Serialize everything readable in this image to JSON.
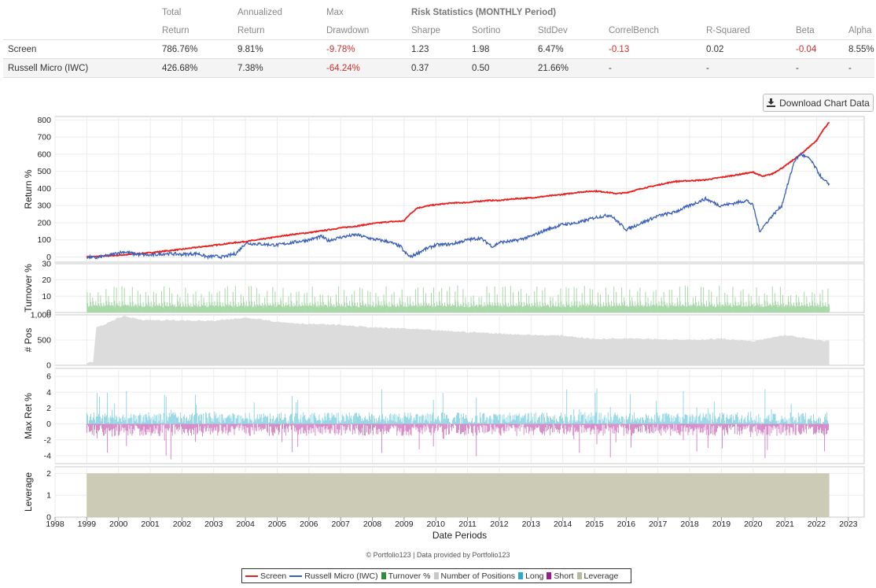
{
  "stats": {
    "headers_top": [
      "Total",
      "Annualized",
      "Max",
      "Risk Statistics (MONTHLY Period)"
    ],
    "headers_bottom": [
      "Return",
      "Return",
      "Drawdown",
      "Sharpe",
      "Sortino",
      "StdDev",
      "CorrelBench",
      "R-Squared",
      "Beta",
      "Alpha"
    ],
    "rows": [
      {
        "name": "Screen",
        "values": [
          "786.76%",
          "9.81%",
          "-9.78%",
          "1.23",
          "1.98",
          "6.47%",
          "-0.13",
          "0.02",
          "-0.04",
          "8.55%"
        ]
      },
      {
        "name": "Russell Micro (IWC)",
        "values": [
          "426.68%",
          "7.38%",
          "-64.24%",
          "0.37",
          "0.50",
          "21.66%",
          "-",
          "-",
          "-",
          "-"
        ]
      }
    ]
  },
  "download_label": "Download Chart Data",
  "credit": "© Portfolio123 | Data provided by Portfolio123",
  "colors": {
    "screen": "#e8201e",
    "bench": "#3a5fb8",
    "turnover": "#a9d8a9",
    "positions": "#dcdcdc",
    "long": "#6cc9dc",
    "short": "#c85fb4",
    "leverage": "#cbcbb6",
    "negative": "#c9302c"
  },
  "chart_data": {
    "type": "line",
    "xlabel": "Date Periods",
    "x_ticks": [
      "1998",
      "1999",
      "2000",
      "2001",
      "2002",
      "2003",
      "2004",
      "2005",
      "2006",
      "2007",
      "2008",
      "2009",
      "2010",
      "2011",
      "2012",
      "2013",
      "2014",
      "2015",
      "2016",
      "2017",
      "2018",
      "2019",
      "2020",
      "2021",
      "2022",
      "2023"
    ],
    "x_range": [
      1998,
      2023.5
    ],
    "series": [
      {
        "name": "Screen",
        "values": [
          [
            1999.0,
            0
          ],
          [
            1999.5,
            5
          ],
          [
            2000.0,
            10
          ],
          [
            2000.5,
            17
          ],
          [
            2001.0,
            25
          ],
          [
            2001.5,
            35
          ],
          [
            2002.0,
            45
          ],
          [
            2002.5,
            57
          ],
          [
            2003.0,
            68
          ],
          [
            2003.5,
            80
          ],
          [
            2004.0,
            90
          ],
          [
            2004.5,
            103
          ],
          [
            2005.0,
            118
          ],
          [
            2005.5,
            132
          ],
          [
            2006.0,
            142
          ],
          [
            2006.5,
            155
          ],
          [
            2007.0,
            170
          ],
          [
            2007.5,
            180
          ],
          [
            2008.0,
            195
          ],
          [
            2008.5,
            205
          ],
          [
            2009.0,
            210
          ],
          [
            2009.1,
            235
          ],
          [
            2009.4,
            285
          ],
          [
            2009.8,
            300
          ],
          [
            2010.0,
            305
          ],
          [
            2010.5,
            315
          ],
          [
            2011.0,
            318
          ],
          [
            2011.6,
            330
          ],
          [
            2012.0,
            330
          ],
          [
            2012.5,
            340
          ],
          [
            2013.0,
            345
          ],
          [
            2013.5,
            355
          ],
          [
            2014.0,
            365
          ],
          [
            2014.5,
            378
          ],
          [
            2015.0,
            385
          ],
          [
            2015.3,
            380
          ],
          [
            2015.7,
            370
          ],
          [
            2016.0,
            375
          ],
          [
            2016.5,
            400
          ],
          [
            2017.0,
            420
          ],
          [
            2017.5,
            440
          ],
          [
            2018.0,
            445
          ],
          [
            2018.5,
            450
          ],
          [
            2019.0,
            465
          ],
          [
            2019.5,
            480
          ],
          [
            2020.0,
            495
          ],
          [
            2020.3,
            470
          ],
          [
            2020.6,
            485
          ],
          [
            2021.0,
            530
          ],
          [
            2021.5,
            600
          ],
          [
            2022.0,
            680
          ],
          [
            2022.2,
            740
          ],
          [
            2022.4,
            787
          ]
        ]
      },
      {
        "name": "Russell Micro (IWC)",
        "values": [
          [
            1999.0,
            0
          ],
          [
            1999.3,
            -5
          ],
          [
            1999.7,
            10
          ],
          [
            2000.0,
            25
          ],
          [
            2000.2,
            30
          ],
          [
            2000.6,
            15
          ],
          [
            2001.0,
            10
          ],
          [
            2001.5,
            20
          ],
          [
            2002.0,
            15
          ],
          [
            2002.5,
            20
          ],
          [
            2002.8,
            0
          ],
          [
            2003.0,
            5
          ],
          [
            2003.3,
            0
          ],
          [
            2003.7,
            20
          ],
          [
            2004.0,
            80
          ],
          [
            2004.5,
            75
          ],
          [
            2005.0,
            70
          ],
          [
            2005.5,
            85
          ],
          [
            2006.0,
            100
          ],
          [
            2006.4,
            120
          ],
          [
            2006.6,
            95
          ],
          [
            2007.0,
            115
          ],
          [
            2007.5,
            130
          ],
          [
            2008.0,
            105
          ],
          [
            2008.5,
            90
          ],
          [
            2008.9,
            60
          ],
          [
            2009.0,
            30
          ],
          [
            2009.2,
            0
          ],
          [
            2009.6,
            40
          ],
          [
            2010.0,
            70
          ],
          [
            2010.5,
            75
          ],
          [
            2011.0,
            100
          ],
          [
            2011.4,
            110
          ],
          [
            2011.8,
            60
          ],
          [
            2012.0,
            85
          ],
          [
            2012.5,
            95
          ],
          [
            2013.0,
            120
          ],
          [
            2013.5,
            160
          ],
          [
            2014.0,
            190
          ],
          [
            2014.5,
            200
          ],
          [
            2015.0,
            230
          ],
          [
            2015.5,
            245
          ],
          [
            2016.0,
            160
          ],
          [
            2016.5,
            200
          ],
          [
            2017.0,
            240
          ],
          [
            2017.5,
            260
          ],
          [
            2018.0,
            300
          ],
          [
            2018.5,
            340
          ],
          [
            2018.95,
            300
          ],
          [
            2019.3,
            310
          ],
          [
            2019.8,
            330
          ],
          [
            2020.0,
            300
          ],
          [
            2020.2,
            150
          ],
          [
            2020.6,
            240
          ],
          [
            2020.9,
            300
          ],
          [
            2021.1,
            430
          ],
          [
            2021.3,
            560
          ],
          [
            2021.5,
            600
          ],
          [
            2021.8,
            570
          ],
          [
            2022.0,
            510
          ],
          [
            2022.2,
            450
          ],
          [
            2022.4,
            427
          ]
        ]
      }
    ],
    "panels": [
      {
        "ylabel": "Return %",
        "y_ticks": [
          "0",
          "100",
          "200",
          "300",
          "400",
          "500",
          "600",
          "700",
          "800"
        ],
        "ylim": [
          -30,
          820
        ]
      },
      {
        "ylabel": "Turnover %",
        "y_ticks": [
          "0",
          "10",
          "20",
          "30"
        ],
        "ylim": [
          0,
          30
        ],
        "series": {
          "name": "Turnover %",
          "monthly_peak": 15,
          "base": 4
        }
      },
      {
        "ylabel": "# Pos",
        "y_ticks": [
          "0",
          "500",
          "1,000"
        ],
        "ylim": [
          0,
          1000
        ],
        "series": {
          "name": "Number of Positions",
          "values": [
            [
              1999.0,
              50
            ],
            [
              1999.2,
              60
            ],
            [
              1999.3,
              740
            ],
            [
              1999.8,
              880
            ],
            [
              2000.0,
              950
            ],
            [
              2000.2,
              970
            ],
            [
              2000.8,
              900
            ],
            [
              2002.0,
              890
            ],
            [
              2003.0,
              880
            ],
            [
              2004.0,
              940
            ],
            [
              2004.5,
              920
            ],
            [
              2005.0,
              860
            ],
            [
              2006.0,
              820
            ],
            [
              2007.0,
              800
            ],
            [
              2008.0,
              750
            ],
            [
              2009.0,
              730
            ],
            [
              2010.0,
              690
            ],
            [
              2011.0,
              660
            ],
            [
              2012.0,
              630
            ],
            [
              2013.0,
              600
            ],
            [
              2014.0,
              590
            ],
            [
              2015.0,
              520
            ],
            [
              2016.0,
              540
            ],
            [
              2017.0,
              520
            ],
            [
              2018.0,
              500
            ],
            [
              2019.0,
              530
            ],
            [
              2020.0,
              470
            ],
            [
              2021.0,
              600
            ],
            [
              2022.0,
              500
            ],
            [
              2022.4,
              480
            ]
          ]
        }
      },
      {
        "ylabel": "Max Ret %",
        "y_ticks": [
          "-4",
          "-2",
          "0",
          "2",
          "4",
          "6"
        ],
        "ylim": [
          -5,
          7
        ],
        "series": [
          {
            "name": "Long",
            "amplitude": 1.5
          },
          {
            "name": "Short",
            "amplitude": 1.5
          }
        ]
      },
      {
        "ylabel": "Leverage",
        "y_ticks": [
          "0",
          "1",
          "2"
        ],
        "ylim": [
          0,
          2.3
        ],
        "series": {
          "name": "Leverage",
          "value": 2
        }
      }
    ],
    "legend": [
      "Screen",
      "Russell Micro (IWC)",
      "Turnover %",
      "Number of Positions",
      "Long",
      "Short",
      "Leverage"
    ],
    "legend_position": "bottom"
  }
}
